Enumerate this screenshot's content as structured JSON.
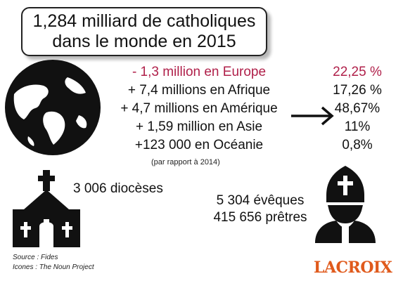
{
  "title": {
    "line1": "1,284 milliard de catholiques",
    "line2": "dans le monde en 2015"
  },
  "regions": [
    {
      "change": "- 1,3 million en Europe",
      "share": "22,25 %",
      "color": "#b0204a"
    },
    {
      "change": "+ 7,4 millions en Afrique",
      "share": "17,26 %"
    },
    {
      "change": "+ 4,7 millions en Amérique",
      "share": "48,67%"
    },
    {
      "change": "+ 1,59 million en Asie",
      "share": "11%"
    },
    {
      "change": "+123 000 en Océanie",
      "share": "0,8%"
    }
  ],
  "note": "(par rapport à 2014)",
  "dioceses": "3 006 diocèses",
  "bishops": "5 304 évêques",
  "priests": "415 656 prêtres",
  "sources": {
    "source": "Source : Fides",
    "icons": "Icones : The Noun Project"
  },
  "logo": "LACROIX",
  "icons": [
    "globe-icon",
    "right-arrow-icon",
    "church-icon",
    "bishop-icon"
  ]
}
